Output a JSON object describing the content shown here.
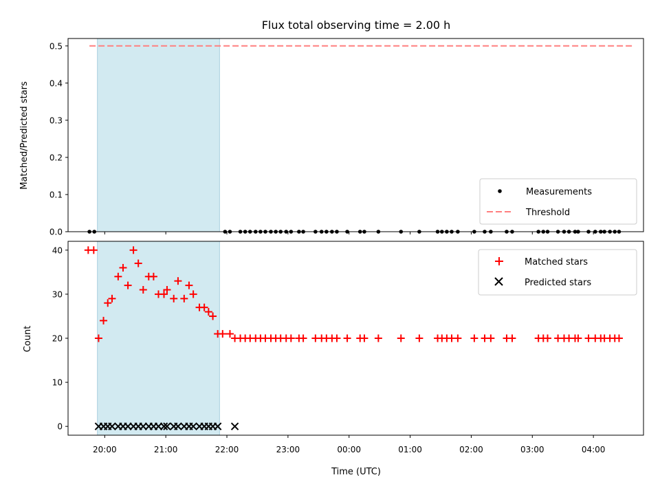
{
  "chart_data": [
    {
      "panel": "top",
      "type": "scatter",
      "title": "Flux total observing time = 2.00 h",
      "xlabel": "",
      "ylabel": "Matched/Predicted stars",
      "ylim": [
        0,
        0.52
      ],
      "yticks": [
        0.0,
        0.1,
        0.2,
        0.3,
        0.4,
        0.5
      ],
      "ytick_labels": [
        "0.0",
        "0.1",
        "0.2",
        "0.3",
        "0.4",
        "0.5"
      ],
      "xticks_shared": true,
      "shaded_interval": {
        "start": 19.88,
        "end": 21.88,
        "color": "#add8e6"
      },
      "threshold": {
        "name": "Threshold",
        "y": 0.5,
        "x_range": [
          19.75,
          28.65
        ],
        "color": "#ff7f7f"
      },
      "series": [
        {
          "name": "Measurements",
          "marker": "dot",
          "color": "#000000",
          "x": [
            19.75,
            19.83,
            21.97,
            22.05,
            22.22,
            22.3,
            22.38,
            22.47,
            22.55,
            22.63,
            22.72,
            22.8,
            22.88,
            22.97,
            23.05,
            23.18,
            23.25,
            23.45,
            23.55,
            23.63,
            23.72,
            23.8,
            23.97,
            24.18,
            24.25,
            24.48,
            24.85,
            25.15,
            25.45,
            25.52,
            25.6,
            25.68,
            25.78,
            26.05,
            26.22,
            26.32,
            26.58,
            26.67,
            27.1,
            27.18,
            27.25,
            27.42,
            27.52,
            27.6,
            27.7,
            27.75,
            27.92,
            28.03,
            28.12,
            28.18,
            28.27,
            28.35,
            28.42
          ],
          "y": [
            0,
            0,
            0,
            0,
            0,
            0,
            0,
            0,
            0,
            0,
            0,
            0,
            0,
            0,
            0,
            0,
            0,
            0,
            0,
            0,
            0,
            0,
            0,
            0,
            0,
            0,
            0,
            0,
            0,
            0,
            0,
            0,
            0,
            0,
            0,
            0,
            0,
            0,
            0,
            0,
            0,
            0,
            0,
            0,
            0,
            0,
            0,
            0,
            0,
            0,
            0,
            0,
            0
          ]
        }
      ],
      "legend": {
        "placement": "lower-right",
        "entries": [
          "Measurements",
          "Threshold"
        ]
      }
    },
    {
      "panel": "bottom",
      "type": "scatter",
      "title": "",
      "xlabel": "Time (UTC)",
      "ylabel": "Count",
      "ylim": [
        -2,
        42
      ],
      "yticks": [
        0,
        10,
        20,
        30,
        40
      ],
      "ytick_labels": [
        "0",
        "10",
        "20",
        "30",
        "40"
      ],
      "xlim": [
        19.4,
        28.82
      ],
      "xticks": [
        20,
        21,
        22,
        23,
        24,
        25,
        26,
        27,
        28
      ],
      "xtick_labels": [
        "20:00",
        "21:00",
        "22:00",
        "23:00",
        "00:00",
        "01:00",
        "02:00",
        "03:00",
        "04:00"
      ],
      "shaded_interval": {
        "start": 19.88,
        "end": 21.88,
        "color": "#add8e6"
      },
      "series": [
        {
          "name": "Matched stars",
          "marker": "plus",
          "color": "#ff0000",
          "points": [
            [
              19.73,
              40
            ],
            [
              19.82,
              40
            ],
            [
              19.9,
              20
            ],
            [
              19.98,
              24
            ],
            [
              20.05,
              28
            ],
            [
              20.12,
              29
            ],
            [
              20.22,
              34
            ],
            [
              20.3,
              36
            ],
            [
              20.38,
              32
            ],
            [
              20.47,
              40
            ],
            [
              20.55,
              37
            ],
            [
              20.63,
              31
            ],
            [
              20.72,
              34
            ],
            [
              20.8,
              34
            ],
            [
              20.88,
              30
            ],
            [
              20.97,
              30
            ],
            [
              21.02,
              31
            ],
            [
              21.13,
              29
            ],
            [
              21.2,
              33
            ],
            [
              21.3,
              29
            ],
            [
              21.38,
              32
            ],
            [
              21.45,
              30
            ],
            [
              21.55,
              27
            ],
            [
              21.63,
              27
            ],
            [
              21.7,
              26
            ],
            [
              21.77,
              25
            ],
            [
              21.85,
              21
            ],
            [
              21.93,
              21
            ],
            [
              22.05,
              21
            ],
            [
              22.13,
              20
            ],
            [
              22.22,
              20
            ],
            [
              22.3,
              20
            ],
            [
              22.38,
              20
            ],
            [
              22.47,
              20
            ],
            [
              22.55,
              20
            ],
            [
              22.63,
              20
            ],
            [
              22.72,
              20
            ],
            [
              22.8,
              20
            ],
            [
              22.88,
              20
            ],
            [
              22.97,
              20
            ],
            [
              23.05,
              20
            ],
            [
              23.18,
              20
            ],
            [
              23.25,
              20
            ],
            [
              23.45,
              20
            ],
            [
              23.55,
              20
            ],
            [
              23.63,
              20
            ],
            [
              23.72,
              20
            ],
            [
              23.8,
              20
            ],
            [
              23.97,
              20
            ],
            [
              24.18,
              20
            ],
            [
              24.25,
              20
            ],
            [
              24.48,
              20
            ],
            [
              24.85,
              20
            ],
            [
              25.15,
              20
            ],
            [
              25.45,
              20
            ],
            [
              25.52,
              20
            ],
            [
              25.6,
              20
            ],
            [
              25.68,
              20
            ],
            [
              25.78,
              20
            ],
            [
              26.05,
              20
            ],
            [
              26.22,
              20
            ],
            [
              26.32,
              20
            ],
            [
              26.58,
              20
            ],
            [
              26.67,
              20
            ],
            [
              27.1,
              20
            ],
            [
              27.18,
              20
            ],
            [
              27.25,
              20
            ],
            [
              27.42,
              20
            ],
            [
              27.52,
              20
            ],
            [
              27.6,
              20
            ],
            [
              27.7,
              20
            ],
            [
              27.75,
              20
            ],
            [
              27.92,
              20
            ],
            [
              28.03,
              20
            ],
            [
              28.12,
              20
            ],
            [
              28.18,
              20
            ],
            [
              28.27,
              20
            ],
            [
              28.35,
              20
            ],
            [
              28.42,
              20
            ]
          ]
        },
        {
          "name": "Predicted stars",
          "marker": "x",
          "color": "#000000",
          "points": [
            [
              19.9,
              0
            ],
            [
              19.98,
              0
            ],
            [
              20.05,
              0
            ],
            [
              20.12,
              0
            ],
            [
              20.22,
              0
            ],
            [
              20.3,
              0
            ],
            [
              20.38,
              0
            ],
            [
              20.47,
              0
            ],
            [
              20.55,
              0
            ],
            [
              20.63,
              0
            ],
            [
              20.72,
              0
            ],
            [
              20.8,
              0
            ],
            [
              20.88,
              0
            ],
            [
              20.97,
              0
            ],
            [
              21.02,
              0
            ],
            [
              21.13,
              0
            ],
            [
              21.2,
              0
            ],
            [
              21.3,
              0
            ],
            [
              21.38,
              0
            ],
            [
              21.45,
              0
            ],
            [
              21.55,
              0
            ],
            [
              21.63,
              0
            ],
            [
              21.7,
              0
            ],
            [
              21.77,
              0
            ],
            [
              21.85,
              0
            ],
            [
              22.13,
              0
            ]
          ]
        }
      ],
      "legend": {
        "placement": "top-right",
        "entries": [
          "Matched stars",
          "Predicted stars"
        ]
      }
    }
  ]
}
